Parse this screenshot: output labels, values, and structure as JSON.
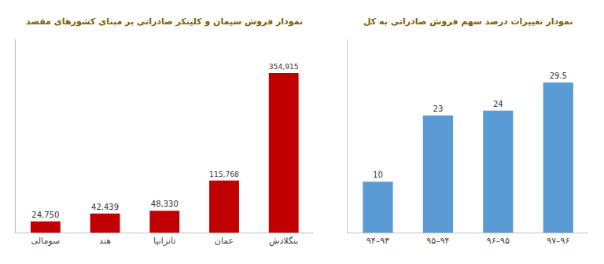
{
  "chart_data": [
    {
      "type": "bar",
      "title": "نمودار فروش سیمان و کلینکر صادراتی بر مبنای کشورهای مقصد",
      "categories": [
        "سومالی",
        "هند",
        "تانزانیا",
        "عمان",
        "بنگلادش"
      ],
      "values": [
        24750,
        42439,
        48330,
        115768,
        354915
      ],
      "value_labels": [
        "24,750",
        "42,439",
        "48,330",
        "115,768",
        "354,915"
      ],
      "color": "#c00000",
      "ylim": [
        0,
        430000
      ],
      "data_labels": true,
      "tick_labels": "x",
      "grid": false
    },
    {
      "type": "bar",
      "title": "نمودار تغییرات درصد سهم فروش صادراتی به کل",
      "categories": [
        "۹۴–۹۳",
        "۹۵–۹۴",
        "۹۶–۹۵",
        "۹۷–۹۶"
      ],
      "values": [
        10,
        23,
        24,
        29.5
      ],
      "color": "#5b9bd5",
      "ylim": [
        0,
        38
      ],
      "data_labels": true,
      "tick_labels": "x",
      "grid": false
    }
  ]
}
